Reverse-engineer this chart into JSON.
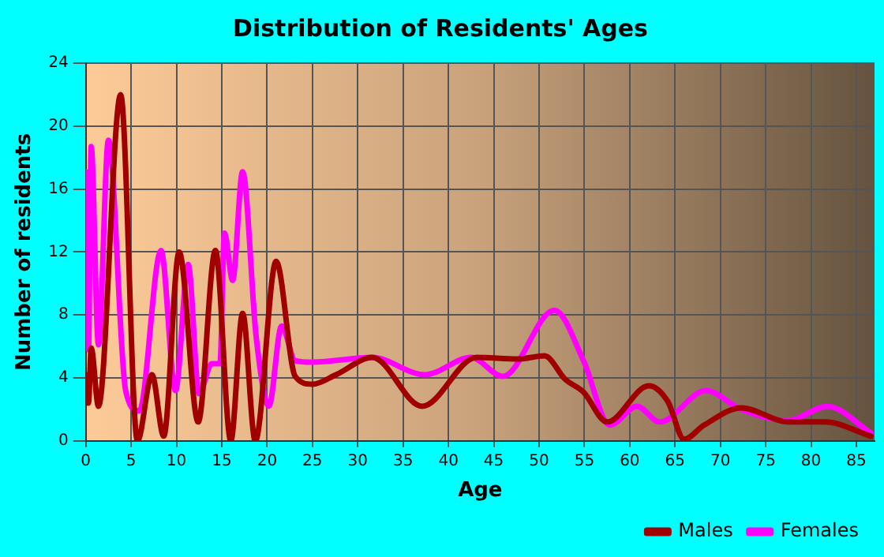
{
  "chart_data": {
    "type": "line",
    "title": "Distribution of Residents' Ages",
    "xlabel": "Age",
    "ylabel": "Number of residents",
    "xlim": [
      0,
      87
    ],
    "xticks": [
      0,
      5,
      10,
      15,
      20,
      25,
      30,
      35,
      40,
      45,
      50,
      55,
      60,
      65,
      70,
      75,
      80,
      85
    ],
    "ylim": [
      0,
      24
    ],
    "yticks": [
      0,
      4,
      8,
      12,
      16,
      20,
      24
    ],
    "grid": true,
    "legend": "bottom right",
    "marker": "none",
    "line_style": "solid",
    "series": [
      {
        "name": "Males",
        "color": "#a00000",
        "x": [
          0,
          0.3,
          0.6,
          1.4,
          3.85,
          5.7,
          7.3,
          8.6,
          10.3,
          12.4,
          14.3,
          16,
          17.3,
          18.7,
          21,
          23.1,
          25,
          27.6,
          31.6,
          37.1,
          43.1,
          47.7,
          50.6,
          52.9,
          54.9,
          57.5,
          62.1,
          64.2,
          66,
          68.2,
          72.3,
          77.5,
          81.5,
          86.6
        ],
        "values": [
          4.2,
          2.4,
          5.9,
          2.2,
          22,
          0,
          4.2,
          0.3,
          12,
          1.2,
          12.1,
          0,
          8.1,
          0,
          11.4,
          4.1,
          3.6,
          4.2,
          5.3,
          2.2,
          5.3,
          5.2,
          5.4,
          3.9,
          3.1,
          1.2,
          3.5,
          2.5,
          0.1,
          1,
          2.1,
          1.2,
          1.2,
          0.3
        ]
      },
      {
        "name": "Females",
        "color": "#ff00ff",
        "x": [
          0,
          0.3,
          0.6,
          1.4,
          2.5,
          4.4,
          5.9,
          8.3,
          9.9,
          11.3,
          12.5,
          13.9,
          14.8,
          15.3,
          16.2,
          17.3,
          18.8,
          20.2,
          21.6,
          23.1,
          25,
          31.6,
          37.4,
          42.5,
          46,
          51.7,
          54.9,
          57.8,
          60.8,
          63.3,
          68.4,
          72.3,
          77.5,
          81.8,
          86.6
        ],
        "values": [
          17.1,
          5.8,
          18.7,
          6.1,
          19.1,
          3.2,
          1.9,
          12.1,
          3.2,
          11.2,
          3,
          4.9,
          4.9,
          13.2,
          10.2,
          17.1,
          6.6,
          2.2,
          7.3,
          5.1,
          5,
          5.3,
          4.2,
          5.3,
          4.1,
          8.3,
          5.1,
          1,
          2.2,
          1.2,
          3.2,
          2,
          1.3,
          2.2,
          0.5
        ]
      }
    ]
  }
}
